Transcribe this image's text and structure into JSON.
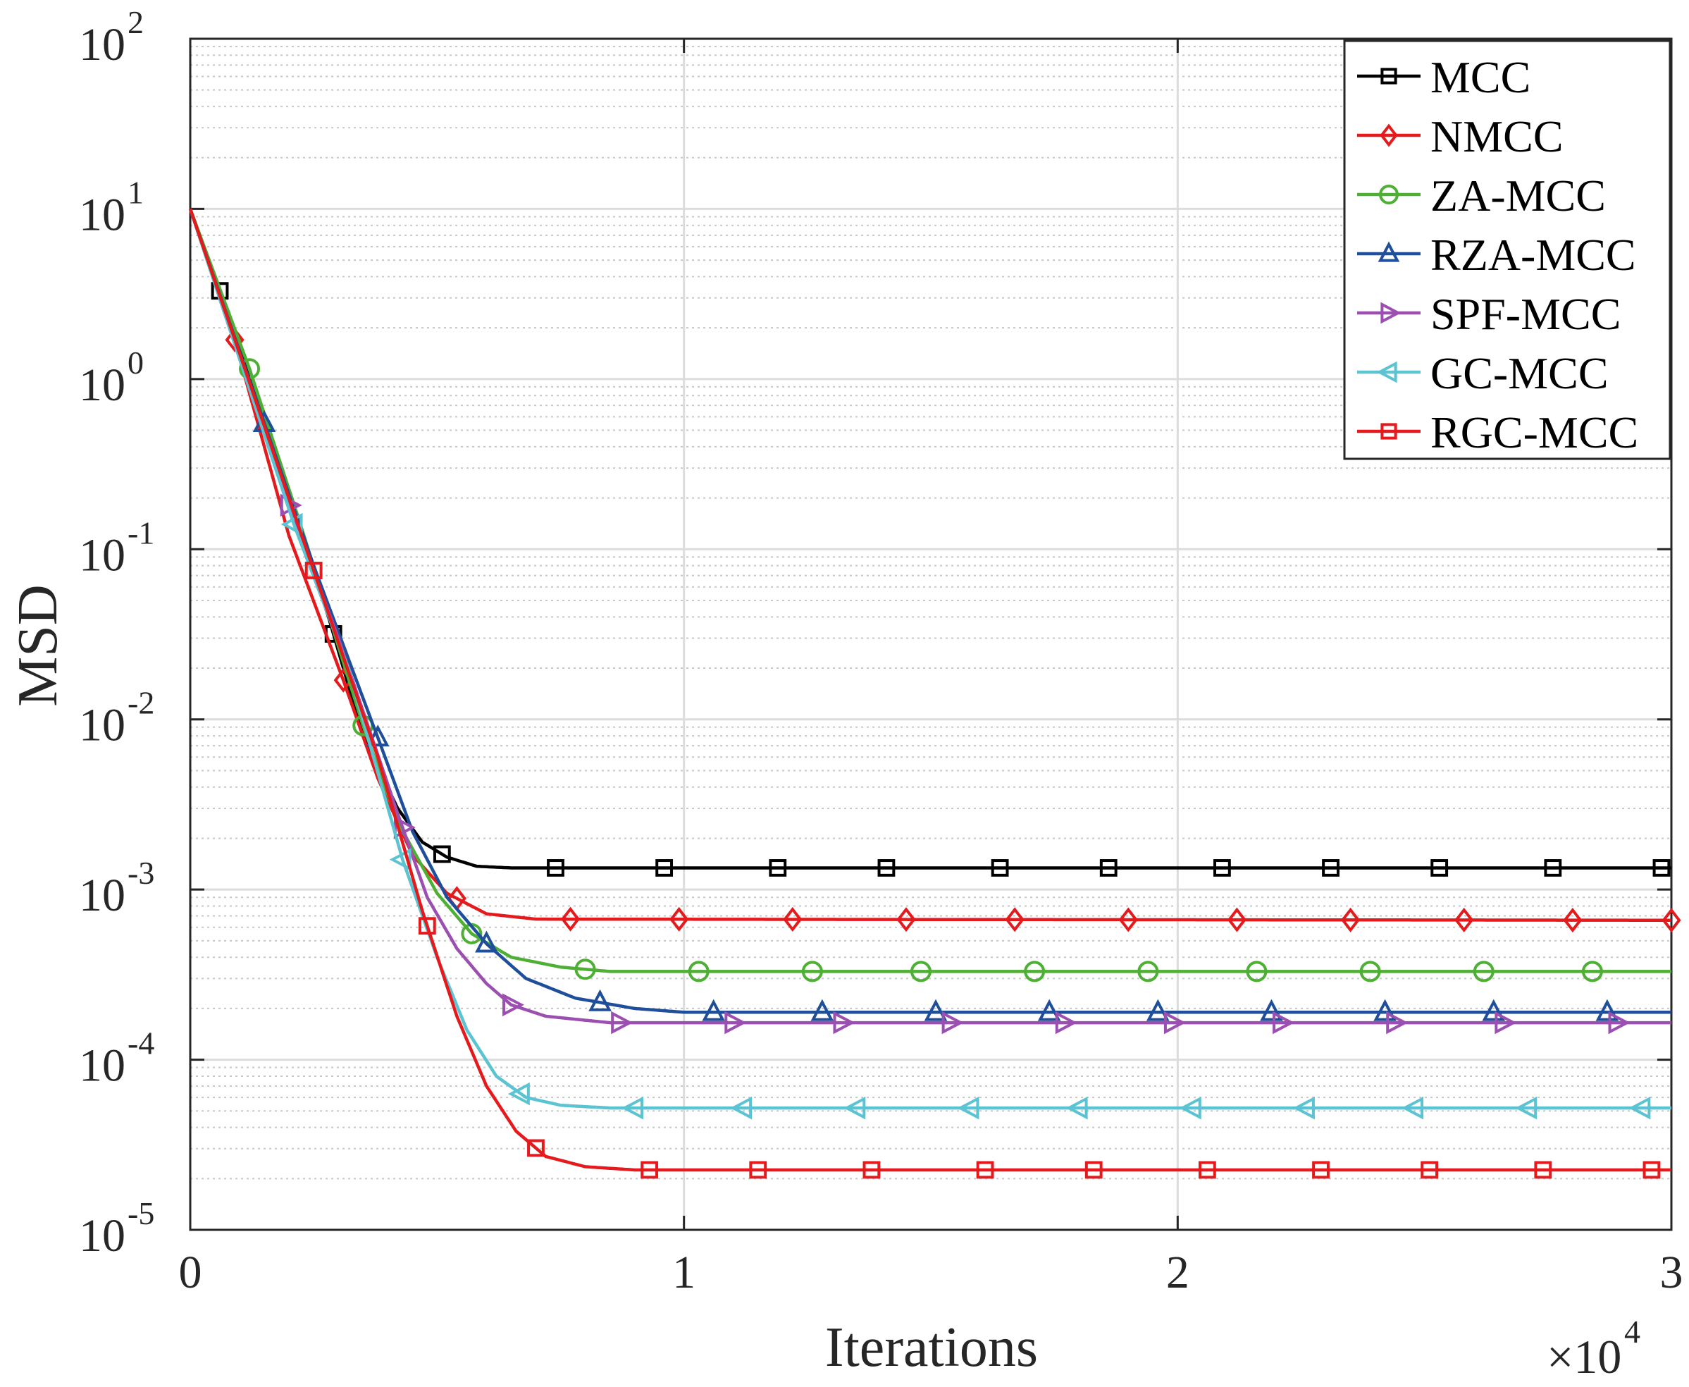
{
  "chart_data": {
    "type": "line",
    "title": "",
    "xlabel": "Iterations",
    "ylabel": "MSD",
    "x_multiplier_label": "×10",
    "x_multiplier_exp": "4",
    "xlim": [
      0,
      3
    ],
    "ylim": [
      1e-05,
      100
    ],
    "yscale": "log",
    "grid": true,
    "legend_position": "top-right",
    "x_ticks": [
      {
        "v": 0,
        "label": "0"
      },
      {
        "v": 1,
        "label": "1"
      },
      {
        "v": 2,
        "label": "2"
      },
      {
        "v": 3,
        "label": "3"
      }
    ],
    "y_ticks": [
      {
        "v": 2,
        "base": "10",
        "exp": "2"
      },
      {
        "v": 1,
        "base": "10",
        "exp": "1"
      },
      {
        "v": 0,
        "base": "10",
        "exp": "0"
      },
      {
        "v": -1,
        "base": "10",
        "exp": "-1"
      },
      {
        "v": -2,
        "base": "10",
        "exp": "-2"
      },
      {
        "v": -3,
        "base": "10",
        "exp": "-3"
      },
      {
        "v": -4,
        "base": "10",
        "exp": "-4"
      },
      {
        "v": -5,
        "base": "10",
        "exp": "-5"
      }
    ],
    "series": [
      {
        "name": "MCC",
        "color": "#000000",
        "marker": "square",
        "points": [
          [
            0,
            10
          ],
          [
            0.06,
            3.3
          ],
          [
            0.15,
            0.55
          ],
          [
            0.28,
            0.04
          ],
          [
            0.35,
            0.008
          ],
          [
            0.42,
            0.003
          ],
          [
            0.47,
            0.0019
          ],
          [
            0.52,
            0.00155
          ],
          [
            0.58,
            0.00137
          ],
          [
            0.65,
            0.00134
          ],
          [
            3,
            0.00134
          ]
        ],
        "marker_x": [
          0.06,
          0.29,
          0.51,
          0.74,
          0.96,
          1.19,
          1.41,
          1.64,
          1.86,
          2.09,
          2.31,
          2.53,
          2.76,
          2.98
        ],
        "level": 0.00134
      },
      {
        "name": "NMCC",
        "color": "#E41A1C",
        "marker": "diamond",
        "points": [
          [
            0,
            10
          ],
          [
            0.09,
            1.7
          ],
          [
            0.2,
            0.12
          ],
          [
            0.31,
            0.017
          ],
          [
            0.38,
            0.0045
          ],
          [
            0.45,
            0.0016
          ],
          [
            0.52,
            0.00095
          ],
          [
            0.6,
            0.00072
          ],
          [
            0.7,
            0.00067
          ],
          [
            3,
            0.00066
          ]
        ],
        "marker_x": [
          0.09,
          0.31,
          0.54,
          0.77,
          0.99,
          1.22,
          1.45,
          1.67,
          1.9,
          2.12,
          2.35,
          2.58,
          2.8,
          3.0
        ],
        "level": 0.00066
      },
      {
        "name": "ZA-MCC",
        "color": "#4DAF33",
        "marker": "circle",
        "points": [
          [
            0,
            10
          ],
          [
            0.12,
            1.15
          ],
          [
            0.22,
            0.15
          ],
          [
            0.35,
            0.0092
          ],
          [
            0.42,
            0.0025
          ],
          [
            0.5,
            0.00095
          ],
          [
            0.57,
            0.00055
          ],
          [
            0.65,
            0.0004
          ],
          [
            0.75,
            0.00035
          ],
          [
            0.85,
            0.00033
          ],
          [
            3,
            0.00033
          ]
        ],
        "marker_x": [
          0.12,
          0.35,
          0.57,
          0.8,
          1.03,
          1.26,
          1.48,
          1.71,
          1.94,
          2.16,
          2.39,
          2.62,
          2.84
        ],
        "level": 0.00033
      },
      {
        "name": "RZA-MCC",
        "color": "#1F4E9A",
        "marker": "triangle-up",
        "points": [
          [
            0,
            10
          ],
          [
            0.15,
            0.55
          ],
          [
            0.25,
            0.08
          ],
          [
            0.38,
            0.0078
          ],
          [
            0.45,
            0.0022
          ],
          [
            0.52,
            0.0009
          ],
          [
            0.6,
            0.00048
          ],
          [
            0.68,
            0.0003
          ],
          [
            0.78,
            0.00023
          ],
          [
            0.9,
            0.0002
          ],
          [
            1.0,
            0.00019
          ],
          [
            3,
            0.00019
          ]
        ],
        "marker_x": [
          0.15,
          0.38,
          0.6,
          0.83,
          1.06,
          1.28,
          1.51,
          1.74,
          1.96,
          2.19,
          2.42,
          2.64,
          2.87
        ],
        "level": 0.00019
      },
      {
        "name": "SPF-MCC",
        "color": "#9B4FB0",
        "marker": "triangle-right",
        "points": [
          [
            0,
            10
          ],
          [
            0.18,
            0.26
          ],
          [
            0.3,
            0.03
          ],
          [
            0.42,
            0.0028
          ],
          [
            0.48,
            0.0009
          ],
          [
            0.54,
            0.00045
          ],
          [
            0.6,
            0.00028
          ],
          [
            0.65,
            0.00021
          ],
          [
            0.72,
            0.00018
          ],
          [
            0.85,
            0.000165
          ],
          [
            3,
            0.000165
          ]
        ],
        "marker_x": [
          0.2,
          0.43,
          0.65,
          0.87,
          1.1,
          1.32,
          1.54,
          1.77,
          1.99,
          2.21,
          2.44,
          2.66,
          2.89
        ],
        "level": 0.000165
      },
      {
        "name": "GC-MCC",
        "color": "#5BC3D1",
        "marker": "triangle-left",
        "points": [
          [
            0,
            10
          ],
          [
            0.21,
            0.14
          ],
          [
            0.32,
            0.02
          ],
          [
            0.43,
            0.0015
          ],
          [
            0.5,
            0.0004
          ],
          [
            0.56,
            0.00015
          ],
          [
            0.62,
            8e-05
          ],
          [
            0.68,
            6e-05
          ],
          [
            0.75,
            5.4e-05
          ],
          [
            0.85,
            5.2e-05
          ],
          [
            3,
            5.2e-05
          ]
        ],
        "marker_x": [
          0.21,
          0.43,
          0.67,
          0.9,
          1.12,
          1.35,
          1.58,
          1.8,
          2.03,
          2.26,
          2.48,
          2.71,
          2.94
        ],
        "level": 5.2e-05
      },
      {
        "name": "RGC-MCC",
        "color": "#E41A1C",
        "marker": "square",
        "points": [
          [
            0,
            10
          ],
          [
            0.25,
            0.075
          ],
          [
            0.38,
            0.006
          ],
          [
            0.47,
            0.00075
          ],
          [
            0.54,
            0.00018
          ],
          [
            0.6,
            7e-05
          ],
          [
            0.66,
            3.8e-05
          ],
          [
            0.72,
            2.7e-05
          ],
          [
            0.8,
            2.35e-05
          ],
          [
            0.9,
            2.25e-05
          ],
          [
            3,
            2.25e-05
          ]
        ],
        "marker_x": [
          0.25,
          0.48,
          0.7,
          0.93,
          1.15,
          1.38,
          1.61,
          1.83,
          2.06,
          2.29,
          2.51,
          2.74,
          2.96
        ],
        "level": 2.25e-05
      }
    ]
  }
}
